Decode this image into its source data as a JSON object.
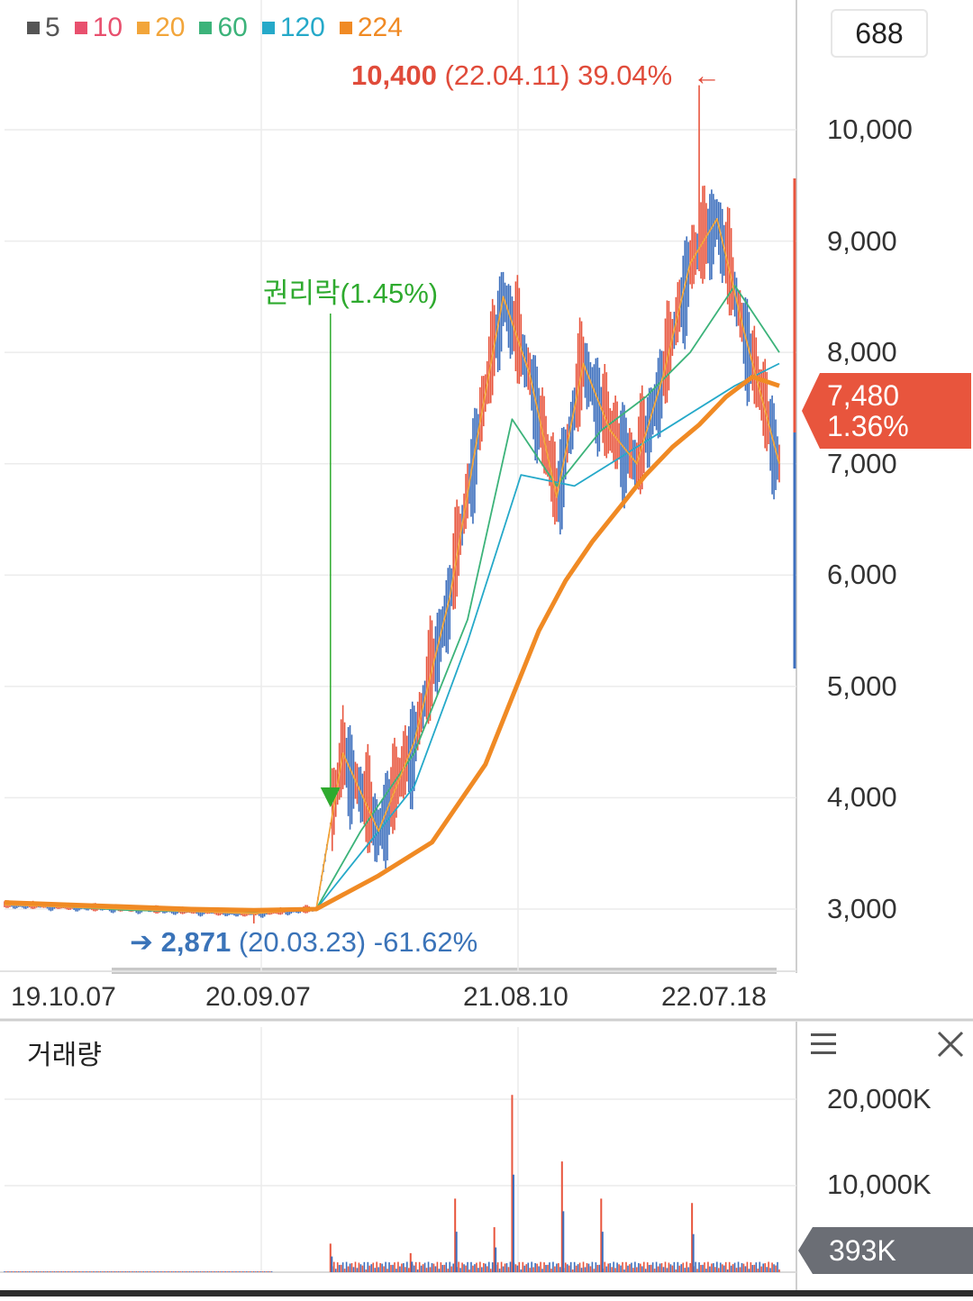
{
  "legend": [
    {
      "label": "5",
      "color": "#555555"
    },
    {
      "label": "10",
      "color": "#e8506e"
    },
    {
      "label": "20",
      "color": "#f2a53a"
    },
    {
      "label": "60",
      "color": "#3cb37a"
    },
    {
      "label": "120",
      "color": "#25a9c9"
    },
    {
      "label": "224",
      "color": "#f08a24"
    }
  ],
  "count_box": "688",
  "current_price": {
    "value": "7,480",
    "change": "1.36%"
  },
  "annotations": {
    "high": {
      "price": "10,400",
      "date": "(22.04.11)",
      "pct": "39.04%",
      "arrow": "←"
    },
    "low": {
      "arrow": "➔",
      "price": "2,871",
      "date": "(20.03.23)",
      "pct": "-61.62%"
    },
    "rights": "권리락(1.45%)"
  },
  "volume_panel": {
    "title": "거래량",
    "last_volume": "393K"
  },
  "chart_data": [
    {
      "type": "line",
      "title": "",
      "ylim": [
        2500,
        11000
      ],
      "grid": true,
      "y_ticks": [
        "10,000",
        "9,000",
        "8,000",
        "7,000",
        "6,000",
        "5,000",
        "4,000",
        "3,000"
      ],
      "y_tick_values": [
        10000,
        9000,
        8000,
        7000,
        6000,
        5000,
        4000,
        3000
      ],
      "x_ticks": [
        "19.10.07",
        "20.09.07",
        "21.08.10",
        "22.07.18"
      ],
      "series": [
        {
          "name": "224",
          "x": [
            0,
            35,
            70,
            105,
            140,
            175,
            210,
            240,
            270,
            285,
            300,
            315,
            330,
            345,
            360,
            375,
            390,
            405,
            420,
            435
          ],
          "values": [
            3060,
            3040,
            3020,
            3000,
            2990,
            3000,
            3300,
            3600,
            4300,
            4900,
            5500,
            5950,
            6300,
            6600,
            6900,
            7150,
            7350,
            7600,
            7780,
            7700
          ]
        },
        {
          "name": "120",
          "x": [
            0,
            70,
            140,
            175,
            200,
            230,
            260,
            290,
            320,
            350,
            380,
            410,
            435
          ],
          "values": [
            3050,
            3000,
            2980,
            3000,
            3500,
            4100,
            5400,
            6900,
            6800,
            7100,
            7400,
            7700,
            7900
          ]
        },
        {
          "name": "60",
          "x": [
            0,
            70,
            140,
            175,
            200,
            230,
            260,
            285,
            310,
            335,
            360,
            385,
            410,
            435
          ],
          "values": [
            3050,
            2990,
            2970,
            3000,
            3700,
            4400,
            5600,
            7400,
            6800,
            7300,
            7600,
            8000,
            8600,
            8000
          ]
        },
        {
          "name": "20",
          "x": [
            0,
            140,
            175,
            190,
            210,
            230,
            250,
            265,
            280,
            295,
            310,
            325,
            340,
            355,
            370,
            385,
            400,
            415,
            435
          ],
          "values": [
            3040,
            2960,
            3000,
            4400,
            3700,
            4500,
            5800,
            7200,
            8500,
            7800,
            6700,
            7900,
            7300,
            7000,
            7800,
            8800,
            9200,
            8200,
            7000
          ]
        }
      ],
      "high_point": {
        "x": 390,
        "value": 10400
      },
      "low_point": {
        "x": 140,
        "value": 2871
      },
      "rights_event": {
        "x": 183
      }
    },
    {
      "type": "bar",
      "title": "거래량",
      "ylim": [
        0,
        22000
      ],
      "y_ticks": [
        "20,000K",
        "10,000K"
      ],
      "y_tick_values": [
        20000,
        10000
      ],
      "spikes": [
        {
          "x": 183,
          "value": 3300
        },
        {
          "x": 228,
          "value": 2200
        },
        {
          "x": 253,
          "value": 8500
        },
        {
          "x": 275,
          "value": 5200
        },
        {
          "x": 285,
          "value": 20500
        },
        {
          "x": 313,
          "value": 12800
        },
        {
          "x": 335,
          "value": 8500
        },
        {
          "x": 386,
          "value": 8000
        }
      ]
    }
  ]
}
